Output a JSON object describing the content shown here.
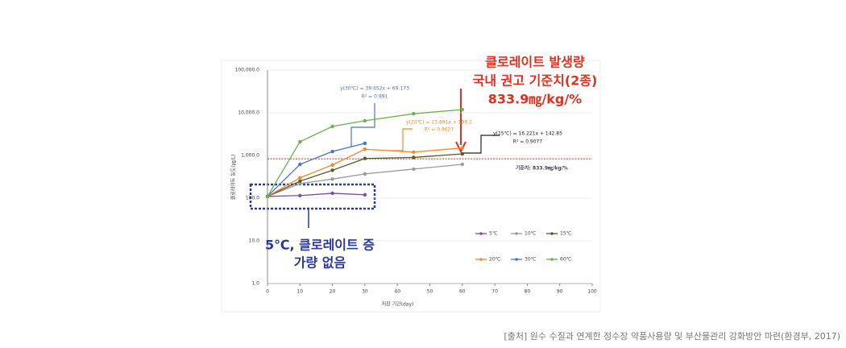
{
  "chart_data": {
    "type": "line",
    "y_label": "클로레이트 농도(㎍/L)",
    "x_label": "저장 기간(day)",
    "log_scale_y": true,
    "x": [
      0,
      10,
      20,
      30,
      45,
      60
    ],
    "xlim": [
      0,
      100
    ],
    "xticks": [
      0,
      10,
      20,
      30,
      40,
      50,
      60,
      70,
      80,
      90,
      100
    ],
    "ylim": [
      1,
      100000
    ],
    "yticks": [
      {
        "value": 1,
        "label": "1.0"
      },
      {
        "value": 10,
        "label": "10.0"
      },
      {
        "value": 100,
        "label": "100.0"
      },
      {
        "value": 1000,
        "label": "1,000.0"
      },
      {
        "value": 10000,
        "label": "10,000.0"
      },
      {
        "value": 100000,
        "label": "100,000.0"
      }
    ],
    "series": [
      {
        "name": "5℃",
        "color": "#7b4fa0",
        "values": [
          110,
          115,
          130,
          120,
          null,
          null
        ]
      },
      {
        "name": "10℃",
        "color": "#9a9a9a",
        "values": [
          110,
          220,
          280,
          370,
          480,
          620
        ]
      },
      {
        "name": "15℃",
        "color": "#5a5a2a",
        "values": [
          110,
          250,
          450,
          850,
          900,
          1090
        ]
      },
      {
        "name": "20℃",
        "color": "#f08a2a",
        "values": [
          110,
          300,
          600,
          1400,
          1200,
          1500
        ]
      },
      {
        "name": "30℃",
        "color": "#4a72c4",
        "values": [
          110,
          620,
          1240,
          1920,
          null,
          null
        ]
      },
      {
        "name": "60℃",
        "color": "#6ab04c",
        "values": [
          110,
          2090,
          4800,
          6500,
          9500,
          11900
        ]
      }
    ],
    "reference_line": {
      "value": 833.9,
      "color": "#e04040",
      "label": "기준치: 833.9㎎/kg/%"
    },
    "annotations": [
      "y(30℃) = 39.652x + 69.173",
      "R² = 0.991",
      "y(20℃) = 23.891x + 199.2",
      "R² = 0.9627",
      "y(15℃) = 16.221x + 142.85",
      "R² = 0.9077",
      "클로레이트 발생량",
      "국내 권고 기준치(2종)",
      "833.9㎎/kg/%",
      "5℃, 클로레이트 증",
      "가량 없음"
    ],
    "source": "[출처] 원수 수질과 연계한 정수장 약품사용량 및 부산물관리 강화방안 마련(환경부, 2017)"
  }
}
